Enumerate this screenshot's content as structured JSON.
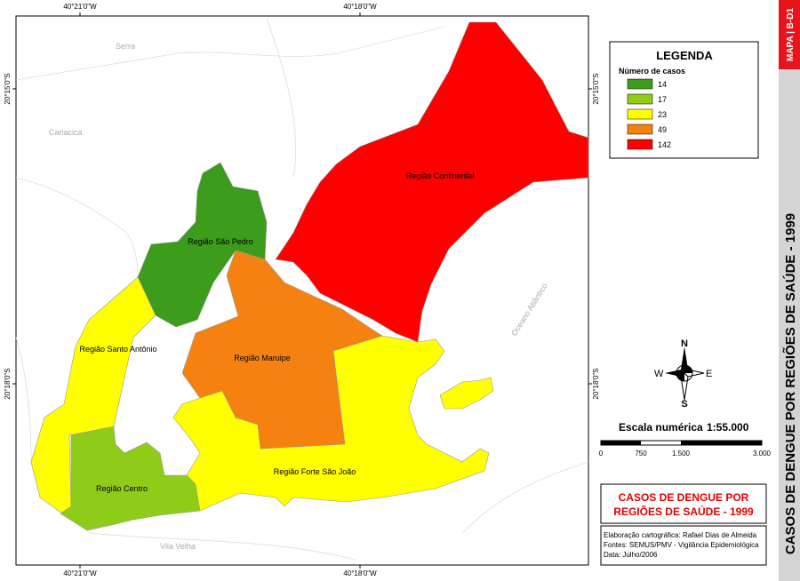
{
  "map": {
    "frame_labels": {
      "top": [
        "40°21'0\"W",
        "40°18'0\"W"
      ],
      "bottom": [
        "40°21'0\"W",
        "40°18'0\"W"
      ],
      "left": [
        "20°15'0\"S",
        "20°18'0\"S"
      ],
      "right": [
        "20°15'0\"S",
        "20°18'0\"S"
      ]
    },
    "places": [
      "Serra",
      "Cariacica",
      "Vila Velha",
      "Oceano Atlântico"
    ],
    "regions": [
      {
        "name": "Região Continental",
        "color": "#ff0000"
      },
      {
        "name": "Região São Pedro",
        "color": "#3c9c1c"
      },
      {
        "name": "Região Maruipe",
        "color": "#f58210"
      },
      {
        "name": "Região Santo Antônio",
        "color": "#ffff00"
      },
      {
        "name": "Região Centro",
        "color": "#8fcc1a"
      },
      {
        "name": "Região Forte São João",
        "color": "#ffff00"
      }
    ]
  },
  "legend": {
    "title": "LEGENDA",
    "subtitle": "Número de casos",
    "items": [
      {
        "label": "14",
        "color": "#3c9c1c"
      },
      {
        "label": "17",
        "color": "#8fcc1a"
      },
      {
        "label": "23",
        "color": "#ffff00"
      },
      {
        "label": "49",
        "color": "#f58210"
      },
      {
        "label": "142",
        "color": "#ff0000"
      }
    ]
  },
  "compass": {
    "n": "N",
    "s": "S",
    "e": "E",
    "w": "W"
  },
  "scale": {
    "label": "Escala numérica",
    "ratio": "1:55.000",
    "ticks": [
      "0",
      "750",
      "1.500",
      "3.000"
    ]
  },
  "title_box": {
    "lines": [
      "CASOS DE DENGUE POR",
      "REGIÕES DE SAÚDE - 1999"
    ]
  },
  "credits": [
    "Elaboração cartográfica: Rafael Dias de Almeida",
    "Fontes: SEMUS/PMV - Vigilância Epidemiológica",
    "Data: Julho/2006"
  ],
  "sidebar": {
    "code": "MAPA | B-D1",
    "title": "CASOS DE DENGUE POR REGIÕES DE SAÚDE - 1999"
  }
}
